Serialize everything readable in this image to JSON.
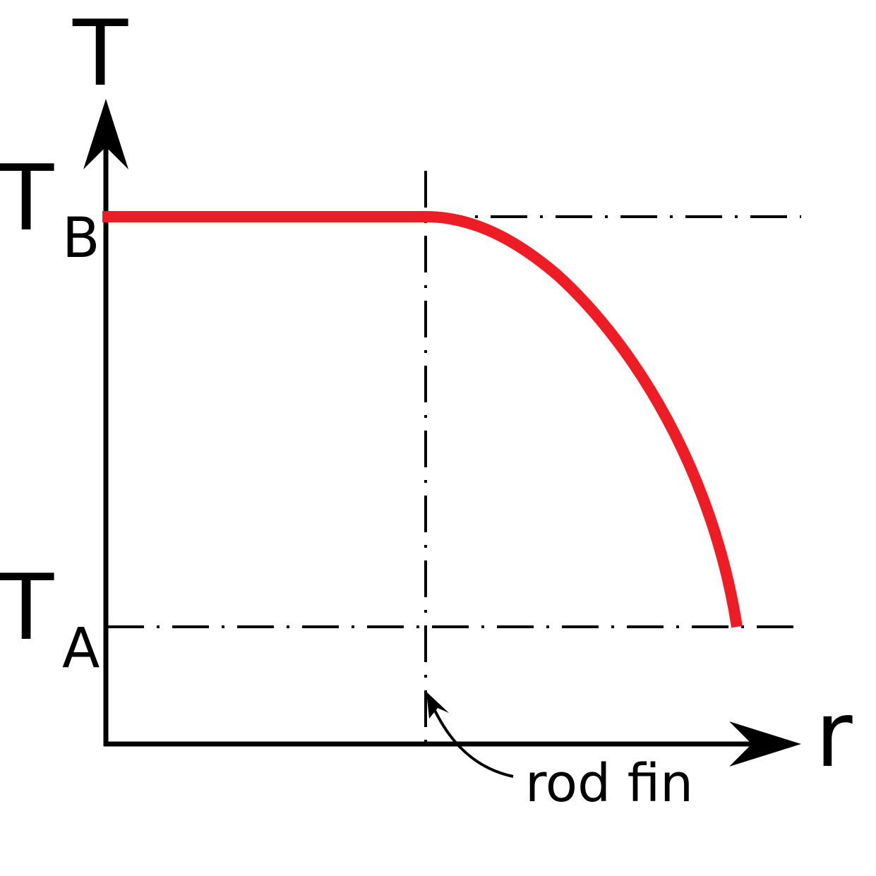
{
  "diagram": {
    "y_axis_label": "T",
    "x_axis_label": "r",
    "level_high": {
      "main": "T",
      "sub": "B"
    },
    "level_low": {
      "main": "T",
      "sub": "A"
    },
    "annotation": "rod fin",
    "colors": {
      "curve": "#ee1d25",
      "axes": "#000000",
      "background": "#ffffff"
    },
    "line_styles": {
      "reference_lines": "dash-dot",
      "curve": "solid"
    }
  }
}
